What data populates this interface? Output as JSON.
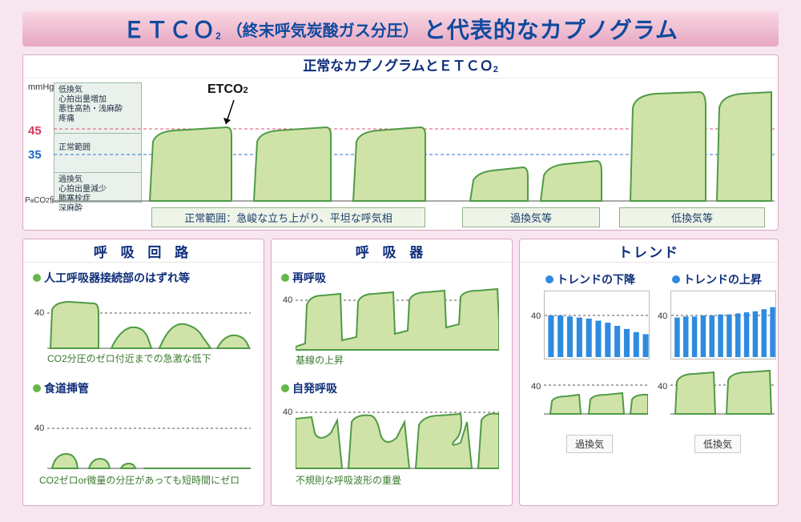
{
  "title": {
    "etco2_main": "ＥＴＣＯ",
    "etco2_sub": "2",
    "paren_text": "（終末呼気炭酸ガス分圧）",
    "tail": "と代表的なカプノグラム"
  },
  "top": {
    "caption_a": "正常なカプノグラムとＥＴＣＯ",
    "caption_sub": "2",
    "y_unit": "mmHg",
    "line45": "45",
    "line35": "35",
    "paco2": "PaCO2値",
    "etco2_label": "ETCO2",
    "zone_upper": [
      "低換気",
      "心拍出量増加",
      "悪性高熱・浅麻酔",
      "疼痛"
    ],
    "zone_mid": "正常範囲",
    "zone_lower": [
      "過換気",
      "心拍出量減少",
      "肺塞栓症",
      "深麻酔"
    ],
    "box_normal": "正常範囲：急峻な立ち上がり、平坦な呼気相",
    "box_hyper": "過換気等",
    "box_hypo": "低換気等",
    "colors": {
      "red_line": "#e05072",
      "blue_line": "#2f74d0",
      "fill": "#cfe3a8",
      "stroke": "#4f9b45",
      "zone_bg": "#e7efea",
      "zone_border": "#9fb9a6"
    },
    "waves": {
      "normal_heights": [
        40,
        40,
        40
      ],
      "hyper_heights": [
        18,
        22
      ],
      "hypo_heights": [
        58,
        58
      ]
    }
  },
  "left": {
    "header": "呼 吸 回 路",
    "bullet_color": "#64b84a",
    "item1_title": "人工呼吸器接続部のはずれ等",
    "item1_note": "CO2分圧のゼロ付近までの急激な低下",
    "item2_title": "食道挿管",
    "item2_note": "CO2ゼロor微量の分圧があっても短時間にゼロ",
    "axis_label": "40"
  },
  "mid": {
    "header": "呼 吸 器",
    "bullet_color": "#64b84a",
    "item1_title": "再呼吸",
    "item1_note": "基線の上昇",
    "item2_title": "自発呼吸",
    "item2_note": "不規則な呼吸波形の重畳",
    "axis_label": "40"
  },
  "right": {
    "header": "トレンド",
    "bullet_color": "#2f8be0",
    "item1_title": "トレンドの下降",
    "item2_title": "トレンドの上昇",
    "tag1": "過換気",
    "tag2": "低換気",
    "axis_label": "40",
    "bar_color": "#2f8be0",
    "bars_down": [
      40,
      40,
      39,
      38,
      37,
      35,
      33,
      30,
      27,
      24,
      22
    ],
    "bars_up": [
      38,
      39,
      39,
      40,
      40,
      41,
      41,
      42,
      43,
      44,
      46,
      48
    ]
  }
}
